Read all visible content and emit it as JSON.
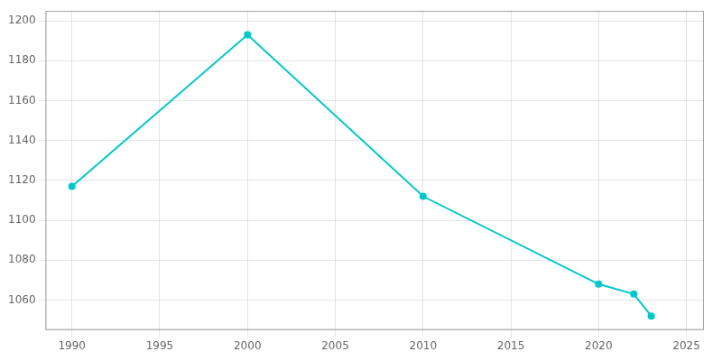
{
  "chart_data": {
    "type": "line",
    "x": [
      1990,
      2000,
      2010,
      2020,
      2022,
      2023
    ],
    "values": [
      1117,
      1193,
      1112,
      1068,
      1063,
      1052
    ],
    "color": "#00c8c8",
    "marker": "circle",
    "xlim": [
      1988.5,
      2026
    ],
    "xticks": [
      1990,
      1995,
      2000,
      2005,
      2010,
      2015,
      2020,
      2025
    ],
    "ylim": [
      1045,
      1205
    ],
    "yticks": [
      1060,
      1080,
      1100,
      1120,
      1140,
      1160,
      1180,
      1200
    ],
    "grid": true
  }
}
